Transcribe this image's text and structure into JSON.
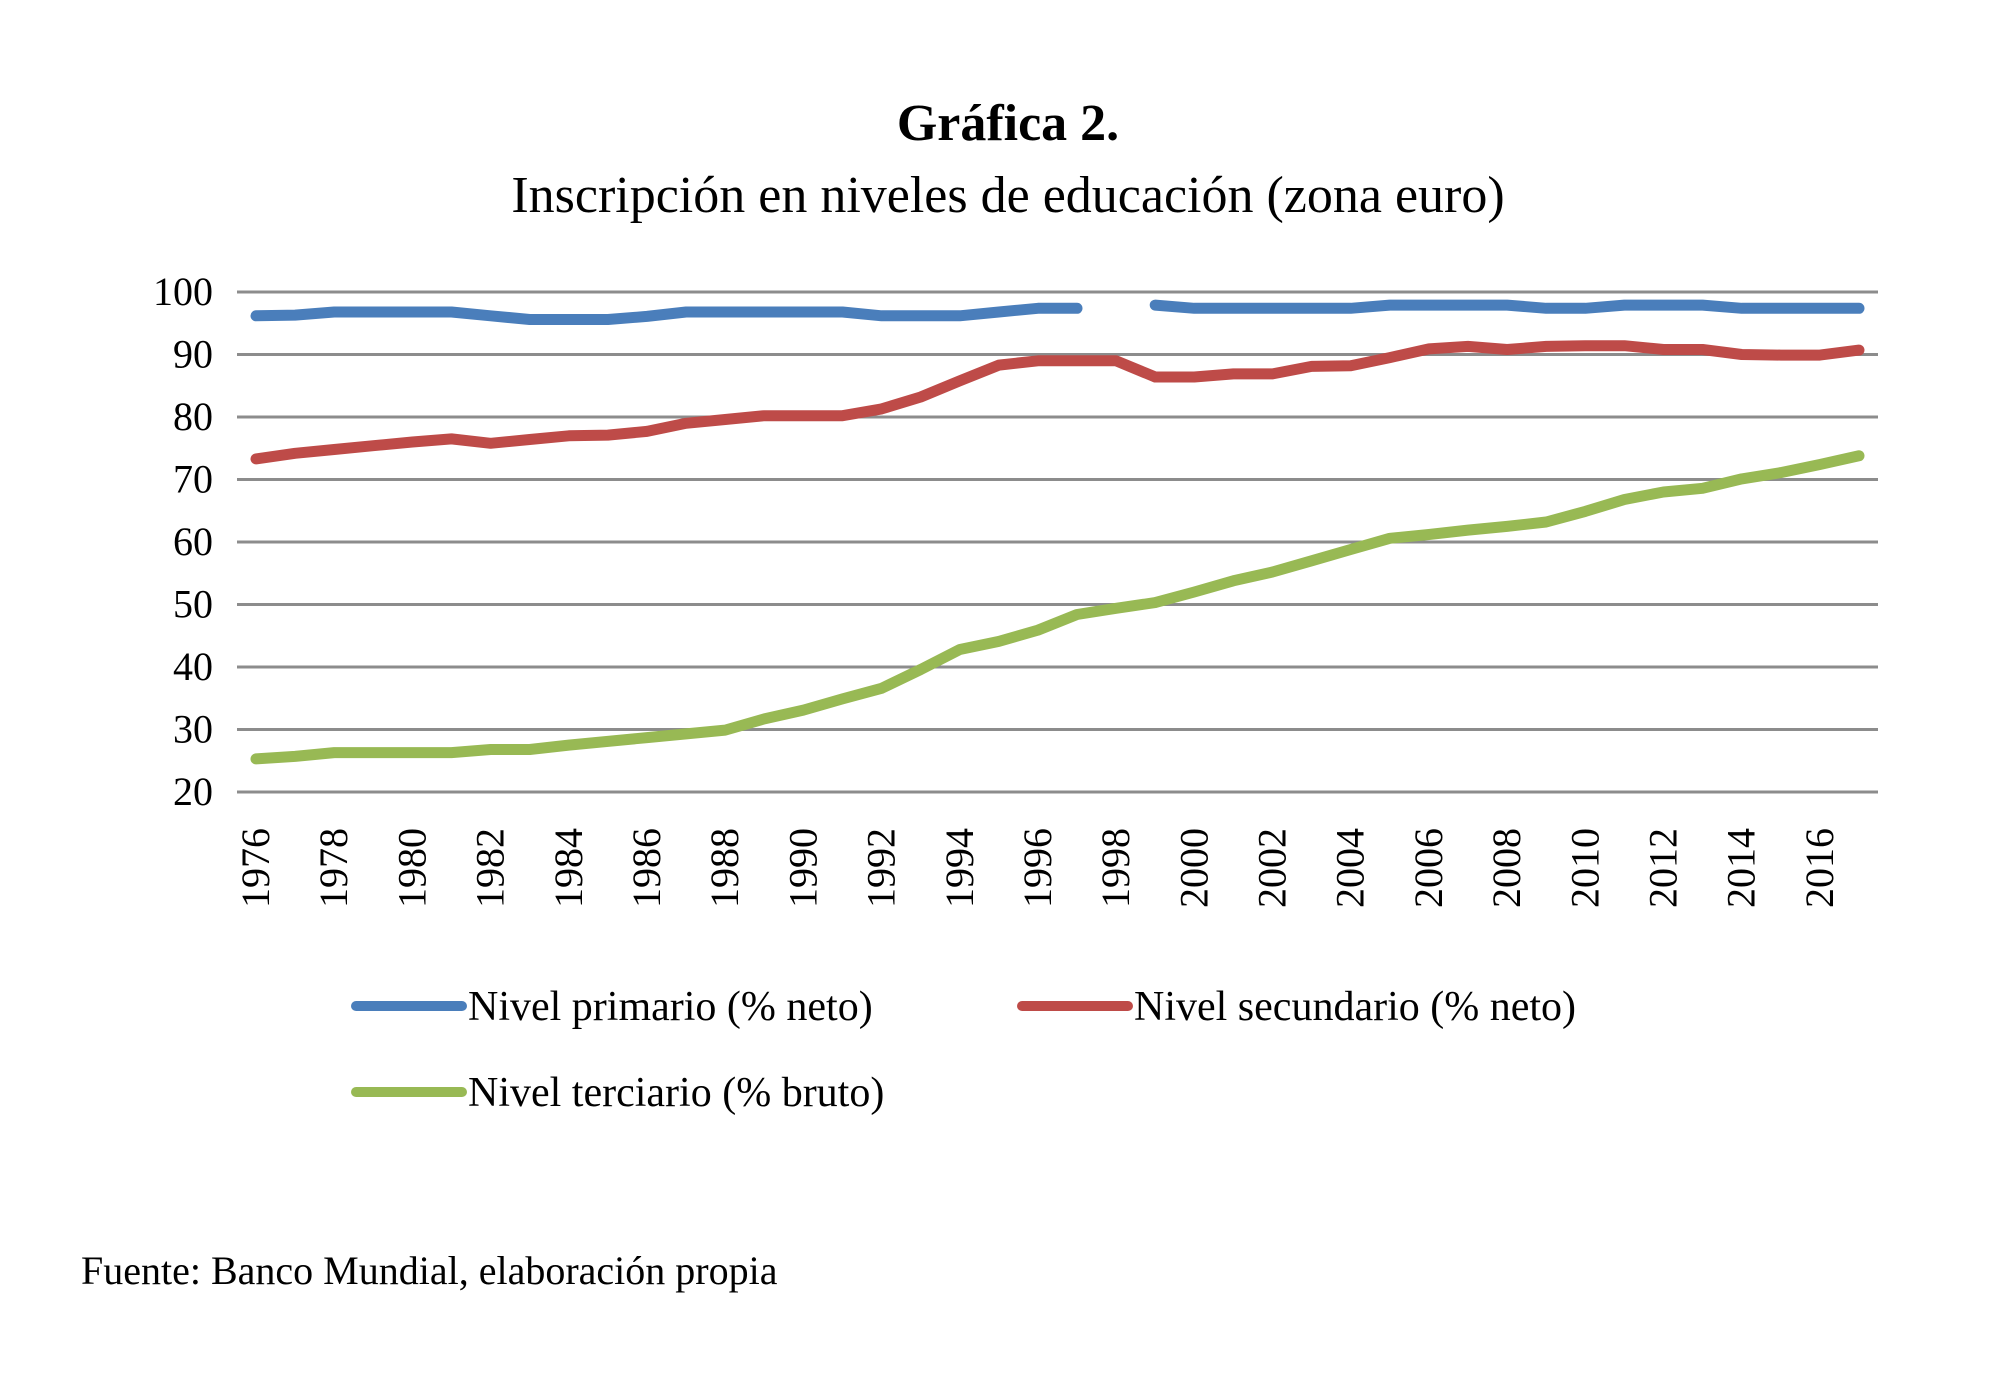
{
  "chart_data": {
    "type": "line",
    "title": "Gráfica 2.",
    "subtitle": "Inscripción en niveles de educación (zona euro)",
    "xlabel": "",
    "ylabel": "",
    "ylim": [
      20,
      100
    ],
    "yticks": [
      "100",
      "90",
      "80",
      "70",
      "60",
      "50",
      "40",
      "30",
      "20"
    ],
    "grid": true,
    "legend_position": "bottom",
    "x": [
      1976,
      1977,
      1978,
      1979,
      1980,
      1981,
      1982,
      1983,
      1984,
      1985,
      1986,
      1987,
      1988,
      1989,
      1990,
      1991,
      1992,
      1993,
      1994,
      1995,
      1996,
      1997,
      1998,
      1999,
      2000,
      2001,
      2002,
      2003,
      2004,
      2005,
      2006,
      2007,
      2008,
      2009,
      2010,
      2011,
      2012,
      2013,
      2014,
      2015,
      2016,
      2017
    ],
    "xticks": [
      "1976",
      "1978",
      "1980",
      "1982",
      "1984",
      "1986",
      "1988",
      "1990",
      "1992",
      "1994",
      "1996",
      "1998",
      "2000",
      "2002",
      "2004",
      "2006",
      "2008",
      "2010",
      "2012",
      "2014",
      "2016"
    ],
    "series": [
      {
        "name": "Nivel primario (% neto)",
        "color": "#4a7ebb",
        "values": [
          96.2,
          96.3,
          96.8,
          96.8,
          96.8,
          96.8,
          96.2,
          95.6,
          95.6,
          95.6,
          96.1,
          96.8,
          96.8,
          96.8,
          96.8,
          96.8,
          96.2,
          96.2,
          96.2,
          96.8,
          97.4,
          97.4,
          null,
          97.9,
          97.4,
          97.4,
          97.4,
          97.4,
          97.4,
          97.9,
          97.9,
          97.9,
          97.9,
          97.4,
          97.4,
          97.9,
          97.9,
          97.9,
          97.4,
          97.4,
          97.4,
          97.4
        ]
      },
      {
        "name": "Nivel secundario (% neto)",
        "color": "#be4b48",
        "values": [
          73.3,
          74.2,
          74.8,
          75.4,
          76.0,
          76.5,
          75.8,
          76.4,
          77.0,
          77.1,
          77.7,
          79.0,
          79.6,
          80.2,
          80.2,
          80.2,
          81.3,
          83.2,
          85.8,
          88.3,
          89.0,
          89.0,
          89.0,
          86.4,
          86.4,
          86.9,
          86.9,
          88.1,
          88.2,
          89.5,
          90.9,
          91.3,
          90.8,
          91.3,
          91.4,
          91.4,
          90.8,
          90.8,
          90.0,
          89.9,
          89.9,
          90.7
        ]
      },
      {
        "name": "Nivel terciario (% bruto)",
        "color": "#98b954",
        "values": [
          25.3,
          25.7,
          26.3,
          26.3,
          26.3,
          26.3,
          26.8,
          26.8,
          27.5,
          28.1,
          28.7,
          29.3,
          29.9,
          31.7,
          33.1,
          34.9,
          36.6,
          39.6,
          42.8,
          44.1,
          45.9,
          48.4,
          49.4,
          50.3,
          52.0,
          53.8,
          55.2,
          57.0,
          58.8,
          60.6,
          61.2,
          61.9,
          62.5,
          63.2,
          64.9,
          66.8,
          68.0,
          68.6,
          70.1,
          71.1,
          72.4,
          73.8
        ]
      }
    ]
  },
  "source": "Fuente: Banco Mundial, elaboración propia"
}
